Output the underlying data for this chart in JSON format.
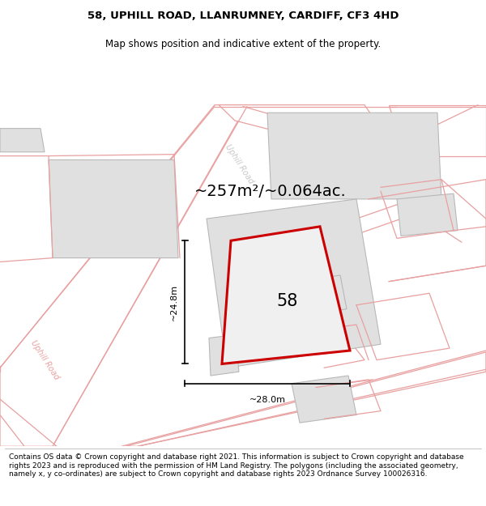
{
  "title_line1": "58, UPHILL ROAD, LLANRUMNEY, CARDIFF, CF3 4HD",
  "title_line2": "Map shows position and indicative extent of the property.",
  "area_text": "~257m²/~0.064ac.",
  "number_label": "58",
  "dim_vertical": "~24.8m",
  "dim_horizontal": "~28.0m",
  "road_label_left": "Uphill Road",
  "road_label_top": "Uphill Road",
  "footer_text": "Contains OS data © Crown copyright and database right 2021. This information is subject to Crown copyright and database rights 2023 and is reproduced with the permission of HM Land Registry. The polygons (including the associated geometry, namely x, y co-ordinates) are subject to Crown copyright and database rights 2023 Ordnance Survey 100026316.",
  "bg_color": "#ffffff",
  "map_bg": "#f7f7f7",
  "road_color": "#e8a0a0",
  "road_lw": 0.9,
  "building_fill": "#e0e0e0",
  "building_edge": "#b8b8b8",
  "building_lw": 0.8,
  "highlight_color": "#cc0000",
  "highlight_lw": 2.2,
  "dim_color": "#000000",
  "title_fontsize": 9.5,
  "subtitle_fontsize": 8.5,
  "area_fontsize": 14,
  "number_fontsize": 15,
  "road_label_fontsize": 7,
  "footer_fontsize": 6.5
}
